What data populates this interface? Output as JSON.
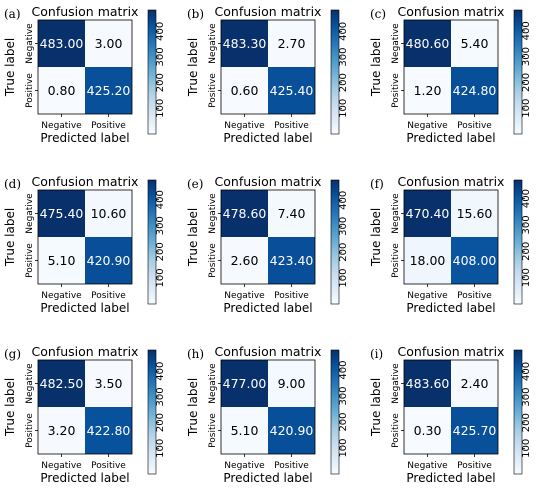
{
  "chart_data": [
    {
      "panel": "(a)",
      "type": "heatmap",
      "title": "Confusion matrix",
      "xlabel": "Predicted label",
      "ylabel": "True label",
      "row_labels": [
        "Negative",
        "Positive"
      ],
      "col_labels": [
        "Negative",
        "Positive"
      ],
      "values": [
        [
          483.0,
          3.0
        ],
        [
          0.8,
          425.2
        ]
      ],
      "display": [
        [
          "483.00",
          "3.00"
        ],
        [
          "0.80",
          "425.20"
        ]
      ],
      "colorbar_ticks": [
        "100",
        "200",
        "300",
        "400"
      ],
      "colorbar_range": [
        0,
        483
      ]
    },
    {
      "panel": "(b)",
      "type": "heatmap",
      "title": "Confusion matrix",
      "xlabel": "Predicted label",
      "ylabel": "True label",
      "row_labels": [
        "Negative",
        "Positive"
      ],
      "col_labels": [
        "Negative",
        "Positive"
      ],
      "values": [
        [
          483.3,
          2.7
        ],
        [
          0.6,
          425.4
        ]
      ],
      "display": [
        [
          "483.30",
          "2.70"
        ],
        [
          "0.60",
          "425.40"
        ]
      ],
      "colorbar_ticks": [
        "100",
        "200",
        "300",
        "400"
      ],
      "colorbar_range": [
        0,
        483.3
      ]
    },
    {
      "panel": "(c)",
      "type": "heatmap",
      "title": "Confusion matrix",
      "xlabel": "Predicted label",
      "ylabel": "True label",
      "row_labels": [
        "Negative",
        "Positive"
      ],
      "col_labels": [
        "Negative",
        "Positive"
      ],
      "values": [
        [
          480.6,
          5.4
        ],
        [
          1.2,
          424.8
        ]
      ],
      "display": [
        [
          "480.60",
          "5.40"
        ],
        [
          "1.20",
          "424.80"
        ]
      ],
      "colorbar_ticks": [
        "100",
        "200",
        "300",
        "400"
      ],
      "colorbar_range": [
        0,
        480.6
      ]
    },
    {
      "panel": "(d)",
      "type": "heatmap",
      "title": "Confusion matrix",
      "xlabel": "Predicted label",
      "ylabel": "True label",
      "row_labels": [
        "Negative",
        "Positive"
      ],
      "col_labels": [
        "Negative",
        "Positive"
      ],
      "values": [
        [
          475.4,
          10.6
        ],
        [
          5.1,
          420.9
        ]
      ],
      "display": [
        [
          "475.40",
          "10.60"
        ],
        [
          "5.10",
          "420.90"
        ]
      ],
      "colorbar_ticks": [
        "100",
        "200",
        "300",
        "400"
      ],
      "colorbar_range": [
        0,
        475.4
      ]
    },
    {
      "panel": "(e)",
      "type": "heatmap",
      "title": "Confusion matrix",
      "xlabel": "Predicted label",
      "ylabel": "True label",
      "row_labels": [
        "Negative",
        "Positive"
      ],
      "col_labels": [
        "Negative",
        "Positive"
      ],
      "values": [
        [
          478.6,
          7.4
        ],
        [
          2.6,
          423.4
        ]
      ],
      "display": [
        [
          "478.60",
          "7.40"
        ],
        [
          "2.60",
          "423.40"
        ]
      ],
      "colorbar_ticks": [
        "100",
        "200",
        "300",
        "400"
      ],
      "colorbar_range": [
        0,
        478.6
      ]
    },
    {
      "panel": "(f)",
      "type": "heatmap",
      "title": "Confusion matrix",
      "xlabel": "Predicted label",
      "ylabel": "True label",
      "row_labels": [
        "Negative",
        "Positive"
      ],
      "col_labels": [
        "Negative",
        "Positive"
      ],
      "values": [
        [
          470.4,
          15.6
        ],
        [
          18.0,
          408.0
        ]
      ],
      "display": [
        [
          "470.40",
          "15.60"
        ],
        [
          "18.00",
          "408.00"
        ]
      ],
      "colorbar_ticks": [
        "100",
        "200",
        "300",
        "400"
      ],
      "colorbar_range": [
        0,
        470.4
      ]
    },
    {
      "panel": "(g)",
      "type": "heatmap",
      "title": "Confusion matrix",
      "xlabel": "Predicted label",
      "ylabel": "True label",
      "row_labels": [
        "Negative",
        "Positive"
      ],
      "col_labels": [
        "Negative",
        "Positive"
      ],
      "values": [
        [
          482.5,
          3.5
        ],
        [
          3.2,
          422.8
        ]
      ],
      "display": [
        [
          "482.50",
          "3.50"
        ],
        [
          "3.20",
          "422.80"
        ]
      ],
      "colorbar_ticks": [
        "100",
        "200",
        "300",
        "400"
      ],
      "colorbar_range": [
        0,
        482.5
      ]
    },
    {
      "panel": "(h)",
      "type": "heatmap",
      "title": "Confusion matrix",
      "xlabel": "Predicted label",
      "ylabel": "True label",
      "row_labels": [
        "Negative",
        "Positive"
      ],
      "col_labels": [
        "Negative",
        "Positive"
      ],
      "values": [
        [
          477.0,
          9.0
        ],
        [
          5.1,
          420.9
        ]
      ],
      "display": [
        [
          "477.00",
          "9.00"
        ],
        [
          "5.10",
          "420.90"
        ]
      ],
      "colorbar_ticks": [
        "100",
        "200",
        "300",
        "400"
      ],
      "colorbar_range": [
        0,
        477.0
      ]
    },
    {
      "panel": "(i)",
      "type": "heatmap",
      "title": "Confusion matrix",
      "xlabel": "Predicted label",
      "ylabel": "True label",
      "row_labels": [
        "Negative",
        "Positive"
      ],
      "col_labels": [
        "Negative",
        "Positive"
      ],
      "values": [
        [
          483.6,
          2.4
        ],
        [
          0.3,
          425.7
        ]
      ],
      "display": [
        [
          "483.60",
          "2.40"
        ],
        [
          "0.30",
          "425.70"
        ]
      ],
      "colorbar_ticks": [
        "100",
        "200",
        "300",
        "400"
      ],
      "colorbar_range": [
        0,
        483.6
      ]
    }
  ],
  "colors": {
    "cmap_low": "#f7fbff",
    "cmap_mid": "#6baed6",
    "cmap_high": "#08306b",
    "text_dark": "#000000",
    "text_light": "#ffffff"
  }
}
